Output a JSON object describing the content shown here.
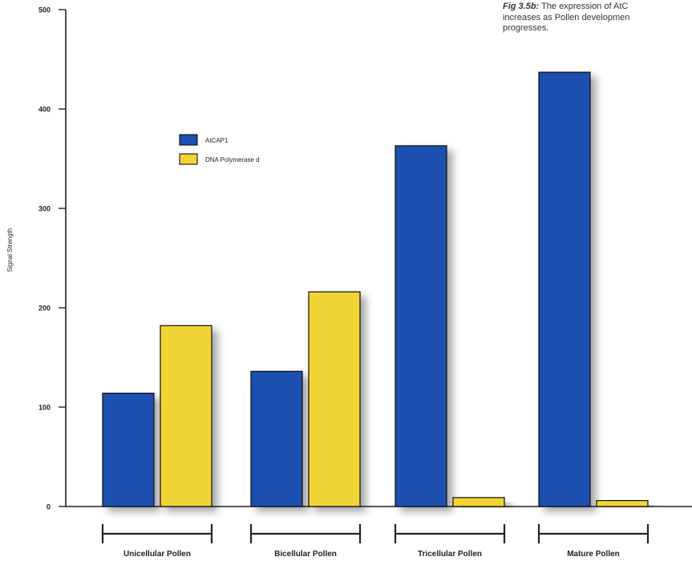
{
  "caption": {
    "label": "Fig 3.5b:",
    "line1": "The expression of AtC",
    "line2": "increases as Pollen developmen",
    "line3": "progresses."
  },
  "chart_data": {
    "type": "bar",
    "title": "",
    "xlabel": "",
    "ylabel": "Signal Strength",
    "ylim": [
      0,
      500
    ],
    "yticks": [
      "0",
      "100",
      "200",
      "300",
      "400",
      "500"
    ],
    "categories": [
      "Unicellular Pollen",
      "Bicellular Pollen",
      "Tricellular Pollen",
      "Mature Pollen"
    ],
    "series": [
      {
        "name": "AtCAP1",
        "values": [
          114,
          136,
          363,
          437
        ]
      },
      {
        "name": "DNA Polymerase d",
        "values": [
          182,
          216,
          9,
          6
        ]
      }
    ],
    "legend": "upper-left inside plot",
    "grid": false
  },
  "colors": {
    "series1": "#1d4fb0",
    "series2": "#f1d435",
    "axis": "#222222"
  }
}
